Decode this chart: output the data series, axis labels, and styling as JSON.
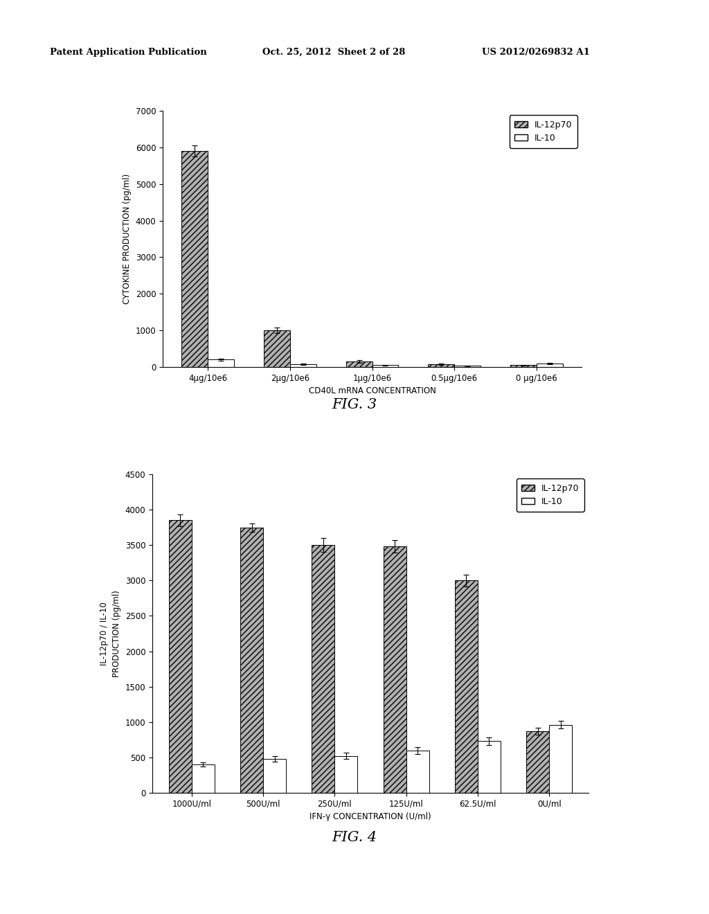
{
  "header_left": "Patent Application Publication",
  "header_mid": "Oct. 25, 2012  Sheet 2 of 28",
  "header_right": "US 2012/0269832 A1",
  "fig3": {
    "title": "FIG. 3",
    "ylabel": "CYTOKINE PRODUCTION (pg/ml)",
    "xlabel": "CD40L mRNA CONCENTRATION",
    "ylim": [
      0,
      7000
    ],
    "yticks": [
      0,
      1000,
      2000,
      3000,
      4000,
      5000,
      6000,
      7000
    ],
    "categories": [
      "4μg/10e6",
      "2μg/10e6",
      "1μg/10e6",
      "0.5μg/10e6",
      "0 μg/10e6"
    ],
    "il12p70": [
      5900,
      1000,
      150,
      80,
      50
    ],
    "il10": [
      200,
      80,
      50,
      30,
      100
    ],
    "il12p70_err": [
      150,
      80,
      30,
      20,
      15
    ],
    "il10_err": [
      30,
      20,
      15,
      10,
      20
    ],
    "legend_il12p70": "IL-12p70",
    "legend_il10": "IL-10"
  },
  "fig4": {
    "title": "FIG. 4",
    "ylabel": "IL-12p70 / IL-10\nPRODUCTION (pg/ml)",
    "xlabel": "IFN-γ CONCENTRATION (U/ml)",
    "ylim": [
      0,
      4500
    ],
    "yticks": [
      0,
      500,
      1000,
      1500,
      2000,
      2500,
      3000,
      3500,
      4000,
      4500
    ],
    "categories": [
      "1000U/ml",
      "500U/ml",
      "250U/ml",
      "125U/ml",
      "62.5U/ml",
      "0U/ml"
    ],
    "il12p70": [
      3850,
      3750,
      3500,
      3480,
      3000,
      870
    ],
    "il10": [
      400,
      480,
      520,
      600,
      730,
      960
    ],
    "il12p70_err": [
      80,
      60,
      100,
      90,
      80,
      50
    ],
    "il10_err": [
      30,
      35,
      45,
      50,
      55,
      55
    ],
    "legend_il12p70": "IL-12p70",
    "legend_il10": "IL-10"
  },
  "hatch_pattern": "////",
  "bar_color_hatched": "#b0b0b0",
  "bar_color_white": "#ffffff",
  "bar_edge_color": "#000000",
  "background_color": "#ffffff",
  "text_color": "#000000"
}
